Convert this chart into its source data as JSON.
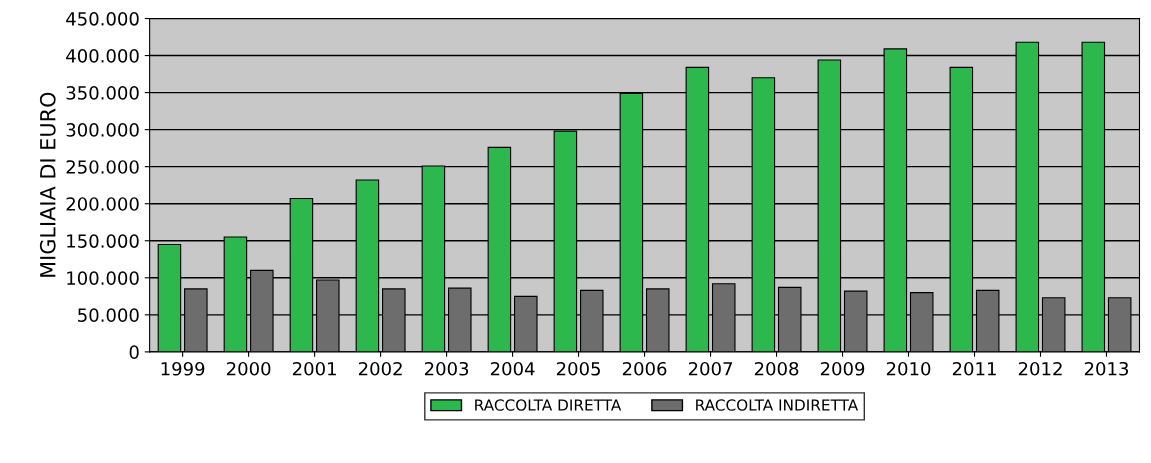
{
  "chart_data": {
    "type": "bar",
    "ylabel": "MIGLIAIA DI EURO",
    "categories": [
      "1999",
      "2000",
      "2001",
      "2002",
      "2003",
      "2004",
      "2005",
      "2006",
      "2007",
      "2008",
      "2009",
      "2010",
      "2011",
      "2012",
      "2013"
    ],
    "series": [
      {
        "name": "RACCOLTA DIRETTA",
        "color": "#2db84d",
        "values": [
          145000,
          155000,
          207000,
          232000,
          251000,
          276000,
          298000,
          349000,
          384000,
          370000,
          394000,
          409000,
          384000,
          418000,
          418000
        ]
      },
      {
        "name": "RACCOLTA INDIRETTA",
        "color": "#6d6d6d",
        "values": [
          85000,
          110000,
          97000,
          85000,
          86000,
          75000,
          83000,
          85000,
          92000,
          87000,
          82000,
          80000,
          83000,
          73000,
          73000
        ]
      }
    ],
    "ylim": [
      0,
      450000
    ],
    "yticks": [
      0,
      {
        "value": 50000,
        "label": "50.000"
      },
      {
        "value": 100000,
        "label": "100.000"
      },
      {
        "value": 150000,
        "label": "150.000"
      },
      {
        "value": 200000,
        "label": "200.000"
      },
      {
        "value": 250000,
        "label": "250.000"
      },
      {
        "value": 300000,
        "label": "300.000"
      },
      {
        "value": 350000,
        "label": "350.000"
      },
      {
        "value": 400000,
        "label": "400.000"
      },
      {
        "value": 450000,
        "label": "450.000"
      }
    ],
    "grid": "y",
    "legend": "bottom"
  }
}
